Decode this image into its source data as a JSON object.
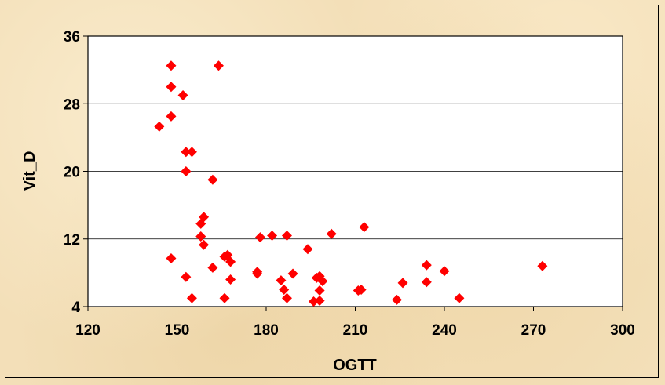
{
  "chart_data": {
    "type": "scatter",
    "title": "",
    "xlabel": "OGTT",
    "ylabel": "Vit_D",
    "xlim": [
      120,
      300
    ],
    "ylim": [
      4,
      36
    ],
    "xticks": [
      120,
      150,
      180,
      210,
      240,
      270,
      300
    ],
    "yticks": [
      4,
      12,
      20,
      28,
      36
    ],
    "grid": "horizontal",
    "legend": "none",
    "marker": "diamond",
    "marker_color": "#ff0000",
    "points": [
      [
        148,
        32.5
      ],
      [
        164,
        32.5
      ],
      [
        148,
        30
      ],
      [
        152,
        29
      ],
      [
        148,
        26.5
      ],
      [
        144,
        25.3
      ],
      [
        153,
        22.3
      ],
      [
        155,
        22.3
      ],
      [
        153,
        20
      ],
      [
        162,
        19
      ],
      [
        159,
        14.6
      ],
      [
        158,
        13.8
      ],
      [
        158,
        12.3
      ],
      [
        159,
        11.3
      ],
      [
        178,
        12.2
      ],
      [
        182,
        12.4
      ],
      [
        187,
        12.4
      ],
      [
        202,
        12.6
      ],
      [
        213,
        13.4
      ],
      [
        194,
        10.8
      ],
      [
        148,
        9.7
      ],
      [
        166,
        9.9
      ],
      [
        167,
        10.1
      ],
      [
        168,
        9.3
      ],
      [
        162,
        8.6
      ],
      [
        153,
        7.5
      ],
      [
        168,
        7.2
      ],
      [
        177,
        8.1
      ],
      [
        177,
        7.9
      ],
      [
        185,
        7.1
      ],
      [
        189,
        7.9
      ],
      [
        197,
        7.4
      ],
      [
        198,
        7.6
      ],
      [
        199,
        7.0
      ],
      [
        186,
        6.0
      ],
      [
        187,
        5.0
      ],
      [
        196,
        4.6
      ],
      [
        198,
        4.7
      ],
      [
        198,
        5.9
      ],
      [
        211,
        5.9
      ],
      [
        212,
        6.0
      ],
      [
        224,
        4.8
      ],
      [
        226,
        6.8
      ],
      [
        234,
        6.9
      ],
      [
        234,
        8.9
      ],
      [
        240,
        8.2
      ],
      [
        245,
        5.0
      ],
      [
        273,
        8.8
      ],
      [
        155,
        5.0
      ],
      [
        166,
        5.0
      ]
    ]
  }
}
